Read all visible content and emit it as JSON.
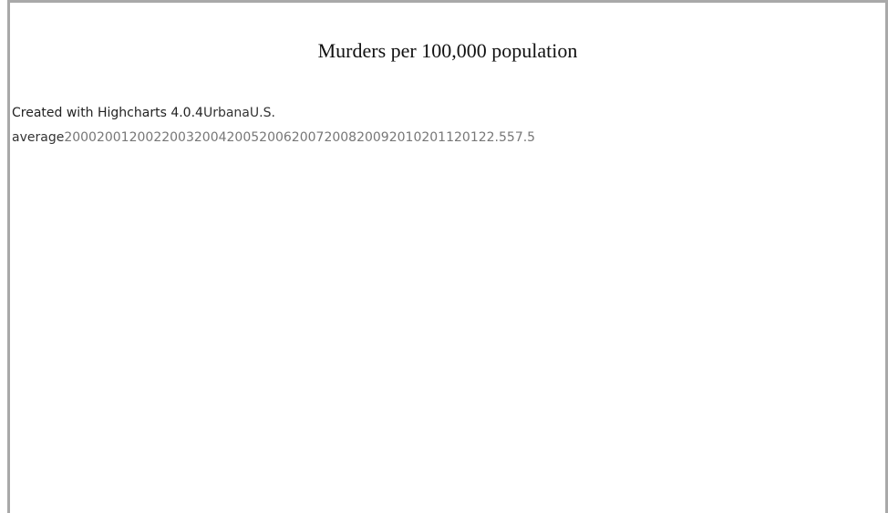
{
  "title": "Murders per 100,000 population",
  "credits": "Created with Highcharts 4.0.4",
  "legend": [
    "Urbana",
    "U.S. average"
  ],
  "x_labels": [
    "2000",
    "2001",
    "2002",
    "2003",
    "2004",
    "2005",
    "2006",
    "2007",
    "2008",
    "2009",
    "2010",
    "2011",
    "2012"
  ],
  "y_labels": [
    "2.5",
    "5",
    "7.5"
  ]
}
